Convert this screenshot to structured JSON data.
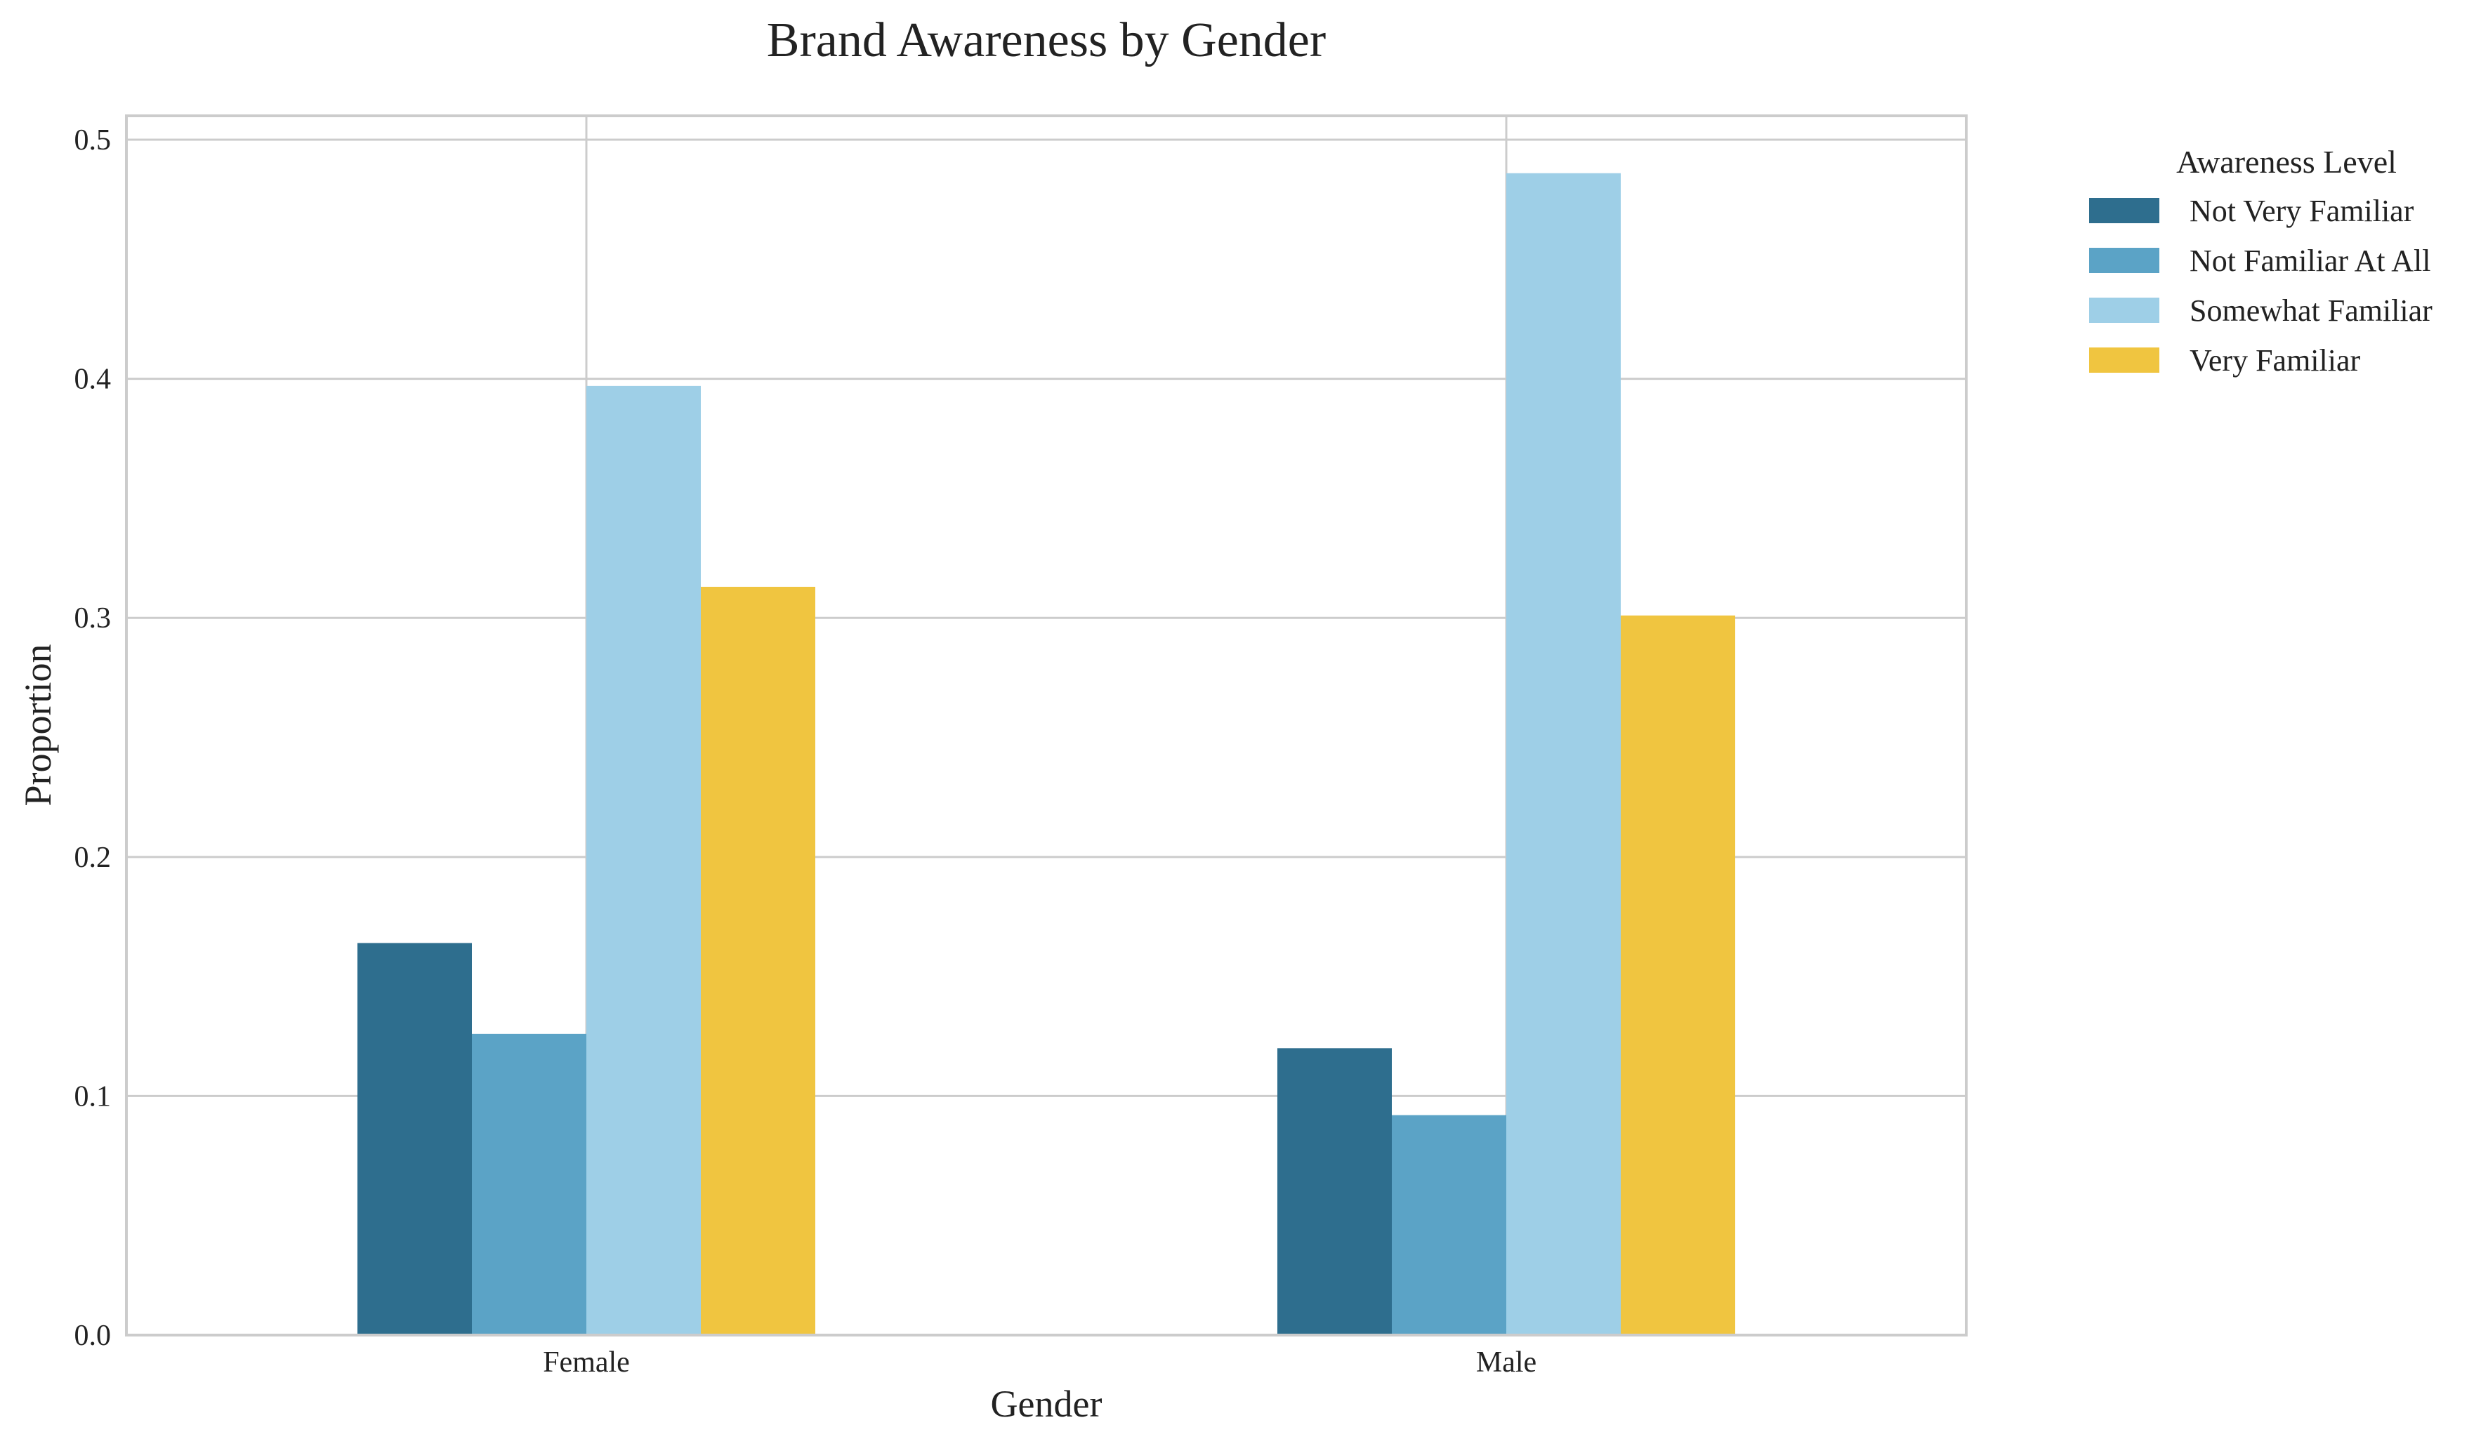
{
  "chart_data": {
    "type": "bar",
    "title": "Brand Awareness by Gender",
    "xlabel": "Gender",
    "ylabel": "Proportion",
    "categories": [
      "Female",
      "Male"
    ],
    "ylim": [
      0,
      0.51
    ],
    "yticks": [
      "0.0",
      "0.1",
      "0.2",
      "0.3",
      "0.4",
      "0.5"
    ],
    "grid": true,
    "legend": {
      "title": "Awareness Level",
      "placement": "outside-right-top"
    },
    "series": [
      {
        "name": "Not Very Familiar",
        "color": "#2e6e8e",
        "values": [
          0.164,
          0.12
        ]
      },
      {
        "name": "Not Familiar At All",
        "color": "#5ba3c6",
        "values": [
          0.126,
          0.092
        ]
      },
      {
        "name": "Somewhat Familiar",
        "color": "#9ecfe7",
        "values": [
          0.397,
          0.486
        ]
      },
      {
        "name": "Very Familiar",
        "color": "#f0c540",
        "values": [
          0.313,
          0.301
        ]
      }
    ]
  }
}
